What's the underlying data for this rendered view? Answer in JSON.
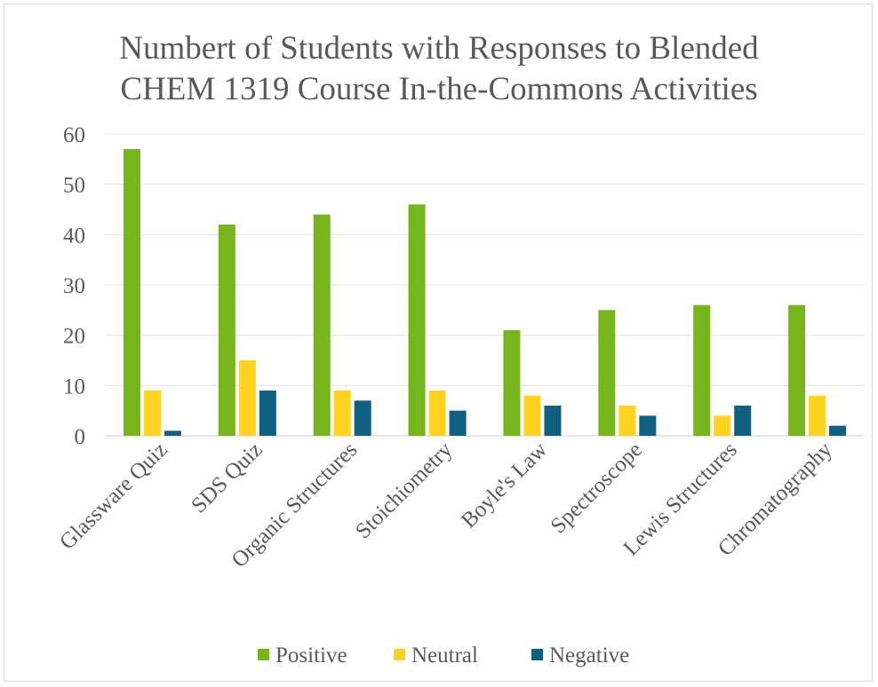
{
  "chart_data": {
    "type": "bar",
    "title_lines": [
      "Numbert of Students with Responses to Blended",
      "CHEM 1319 Course In-the-Commons Activities"
    ],
    "categories": [
      "Glassware Quiz",
      "SDS Quiz",
      "Organic Structures",
      "Stoichiometry",
      "Boyle's Law",
      "Spectroscope",
      "Lewis Structures",
      "Chromatography"
    ],
    "series": [
      {
        "name": "Positive",
        "color": "#77b51c",
        "values": [
          57,
          42,
          44,
          46,
          21,
          25,
          26,
          26
        ]
      },
      {
        "name": "Neutral",
        "color": "#ffd320",
        "values": [
          9,
          15,
          9,
          9,
          8,
          6,
          4,
          8
        ]
      },
      {
        "name": "Negative",
        "color": "#0f6081",
        "values": [
          1,
          9,
          7,
          5,
          6,
          4,
          6,
          2
        ]
      }
    ],
    "ylim": [
      0,
      60
    ],
    "yticks": [
      "0",
      "10",
      "20",
      "30",
      "40",
      "50",
      "60"
    ],
    "grid": true,
    "legend_position": "bottom"
  }
}
